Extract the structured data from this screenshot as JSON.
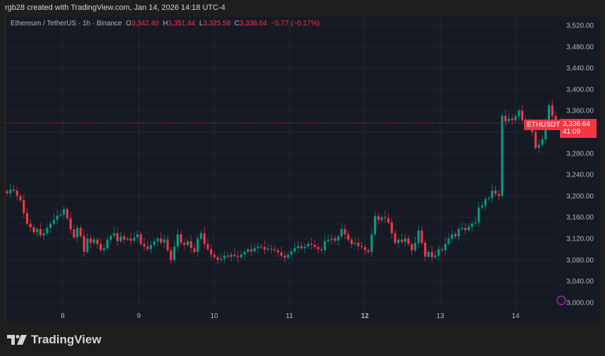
{
  "credit": "rgb28 created with TradingView.com, Jan 14, 2026 14:18 UTC-4",
  "legend": {
    "symbol": "Ethereum / TetherUS · 1h · Binance",
    "o_label": "O",
    "o": "3,342.40",
    "h_label": "H",
    "h": "3,351.44",
    "l_label": "L",
    "l": "3,325.58",
    "c_label": "C",
    "c": "3,336.64",
    "change": "−5.77 (−0.17%)"
  },
  "price_tag": {
    "symbol": "ETHUSDT",
    "price": "3,336.64",
    "countdown": "41:09"
  },
  "logo": "TradingView",
  "colors": {
    "up": "#089981",
    "down": "#f23645",
    "grid": "#232632",
    "bg": "#161a25",
    "axis_text": "#b2b5be"
  },
  "chart_data": {
    "type": "candlestick",
    "title": "Ethereum / TetherUS · 1h · Binance",
    "xlabel": "",
    "ylabel": "",
    "x_ticks": [
      "8",
      "9",
      "10",
      "11",
      "12",
      "13",
      "14"
    ],
    "y_ticks": [
      "3,520.00",
      "3,480.00",
      "3,440.00",
      "3,400.00",
      "3,360.00",
      "3,320.00",
      "3,280.00",
      "3,240.00",
      "3,200.00",
      "3,160.00",
      "3,120.00",
      "3,080.00",
      "3,040.00",
      "3,000.00"
    ],
    "ylim": [
      3000,
      3520
    ],
    "grid": true,
    "last_price": 3336.64,
    "closes": [
      3205,
      3212,
      3210,
      3200,
      3192,
      3168,
      3148,
      3141,
      3132,
      3138,
      3126,
      3130,
      3140,
      3148,
      3155,
      3163,
      3165,
      3175,
      3158,
      3137,
      3122,
      3140,
      3125,
      3095,
      3120,
      3112,
      3118,
      3110,
      3098,
      3102,
      3118,
      3125,
      3130,
      3115,
      3124,
      3118,
      3120,
      3116,
      3122,
      3128,
      3110,
      3105,
      3100,
      3108,
      3115,
      3120,
      3112,
      3118,
      3098,
      3080,
      3105,
      3128,
      3112,
      3108,
      3115,
      3102,
      3095,
      3120,
      3130,
      3110,
      3100,
      3090,
      3085,
      3080,
      3082,
      3088,
      3086,
      3090,
      3087,
      3085,
      3090,
      3095,
      3100,
      3096,
      3102,
      3105,
      3104,
      3099,
      3101,
      3100,
      3098,
      3094,
      3088,
      3084,
      3090,
      3096,
      3102,
      3106,
      3102,
      3105,
      3110,
      3108,
      3104,
      3100,
      3098,
      3115,
      3118,
      3120,
      3116,
      3124,
      3138,
      3128,
      3118,
      3110,
      3112,
      3106,
      3104,
      3098,
      3095,
      3128,
      3162,
      3155,
      3160,
      3158,
      3150,
      3130,
      3112,
      3118,
      3114,
      3120,
      3110,
      3098,
      3112,
      3135,
      3112,
      3086,
      3095,
      3085,
      3088,
      3100,
      3098,
      3110,
      3120,
      3128,
      3124,
      3138,
      3140,
      3136,
      3142,
      3148,
      3150,
      3178,
      3182,
      3194,
      3196,
      3210,
      3204,
      3200,
      3350,
      3340,
      3345,
      3342,
      3350,
      3360,
      3342,
      3335,
      3340,
      3320,
      3290,
      3296,
      3306,
      3340,
      3370,
      3350,
      3337
    ]
  }
}
